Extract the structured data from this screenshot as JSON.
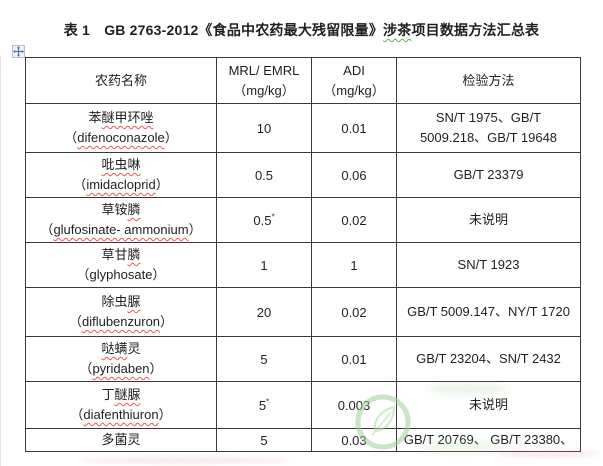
{
  "title": {
    "pre": "表 1　GB 2763-2012《食品中农药最大残留限量》",
    "wavy": "涉茶",
    "post": "项目数据方法汇总表"
  },
  "table": {
    "header": [
      {
        "line1": "农药名称"
      },
      {
        "line1": "MRL/ EMRL",
        "line2": "（mg/kg）"
      },
      {
        "line1": "ADI",
        "line2": "（mg/kg）"
      },
      {
        "line1": "检验方法"
      }
    ],
    "rows": [
      {
        "cn": {
          "pre": "苯",
          "wavy": "醚甲环唑",
          "post": ""
        },
        "en": {
          "pre": "（",
          "wavy": "difenoconazole",
          "post": "）"
        },
        "mrl": "10",
        "mrl_note": "",
        "adi": "0.01",
        "method": "SN/T 1975、GB/T\n5009.218、GB/T 19648"
      },
      {
        "cn": {
          "pre": "",
          "wavy": "吡虫啉",
          "post": ""
        },
        "en": {
          "pre": "（",
          "wavy": "imidacloprid",
          "post": "）"
        },
        "mrl": "0.5",
        "mrl_note": "",
        "adi": "0.06",
        "method": "GB/T 23379"
      },
      {
        "cn": {
          "pre": "草铵",
          "wavy": "膦",
          "post": ""
        },
        "en": {
          "pre": "（",
          "wavy": "glufosinate- ammonium",
          "post": "）"
        },
        "mrl": "0.5",
        "mrl_note": "*",
        "adi": "0.02",
        "method": "未说明"
      },
      {
        "cn": {
          "pre": "草甘",
          "wavy": "膦",
          "post": ""
        },
        "en": {
          "pre": "（glyphosate）",
          "wavy": "",
          "post": ""
        },
        "mrl": "1",
        "mrl_note": "",
        "adi": "1",
        "method": "SN/T 1923"
      },
      {
        "cn": {
          "pre": "除虫",
          "wavy": "脲",
          "post": ""
        },
        "en": {
          "pre": "（",
          "wavy": "diflubenzuron",
          "post": "）"
        },
        "mrl": "20",
        "mrl_note": "",
        "adi": "0.02",
        "method": "GB/T 5009.147、NY/T 1720"
      },
      {
        "cn": {
          "pre": "",
          "wavy": "哒螨",
          "post": "灵"
        },
        "en": {
          "pre": "（",
          "wavy": "pyridaben",
          "post": "）"
        },
        "mrl": "5",
        "mrl_note": "",
        "adi": "0.01",
        "method": "GB/T 23204、SN/T 2432"
      },
      {
        "cn": {
          "pre": "丁",
          "wavy": "醚脲",
          "post": ""
        },
        "en": {
          "pre": "（",
          "wavy": "diafenthiuron",
          "post": "）"
        },
        "mrl": "5",
        "mrl_note": "*",
        "adi": "0.003",
        "method": "未说明"
      },
      {
        "cn": {
          "pre": "多菌灵",
          "wavy": "",
          "post": ""
        },
        "en": null,
        "mrl": "5",
        "mrl_note": "",
        "adi": "0.03",
        "method": "GB/T 20769、 GB/T 23380、"
      }
    ]
  },
  "icons": {
    "move_handle": "table-move-handle-icon",
    "watermark": "leaf-logo-watermark"
  },
  "colors": {
    "text": "#1f1f1f",
    "border": "#3a3a3a",
    "spell_red": "#ef5350",
    "spell_green": "#57b947",
    "handle_blue": "#4a72a8",
    "watermark_green": "#9ed197"
  }
}
